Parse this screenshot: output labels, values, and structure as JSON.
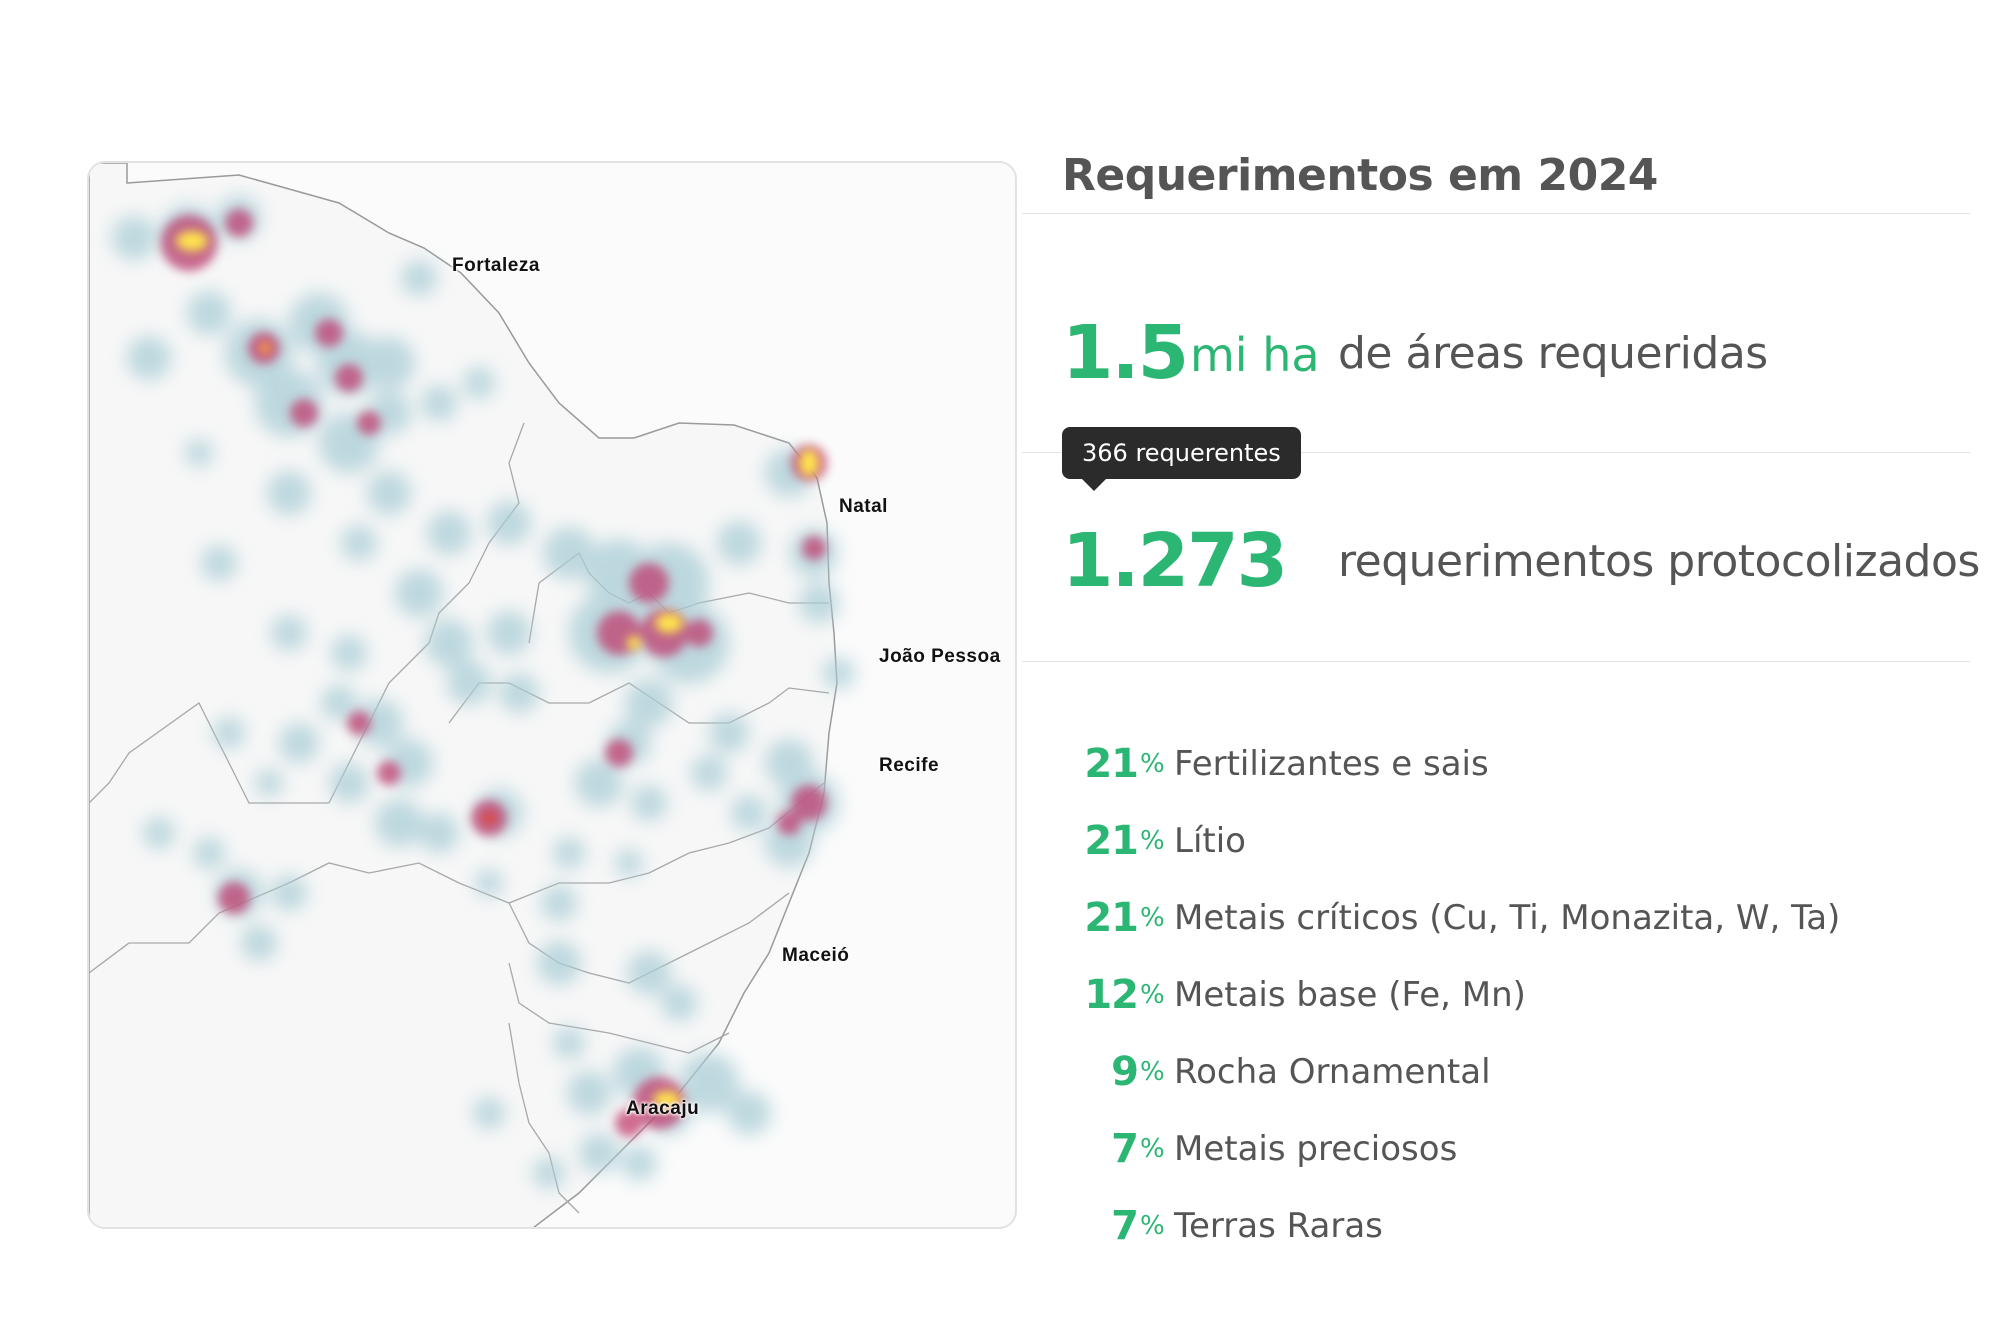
{
  "map": {
    "cities": [
      {
        "name": "Fortaleza"
      },
      {
        "name": "Natal"
      },
      {
        "name": "João Pessoa"
      },
      {
        "name": "Recife"
      },
      {
        "name": "Maceió"
      },
      {
        "name": "Aracaju"
      }
    ],
    "heat_colors": {
      "low": "#a9cdd6",
      "mid": "#c0386a",
      "high": "#ffe34d"
    }
  },
  "stats": {
    "title": "Requerimentos em 2024",
    "area": {
      "value": "1.5",
      "unit": "mi ha",
      "label": "de áreas requeridas"
    },
    "tooltip": "366 requerentes",
    "requests": {
      "value": "1.273",
      "label": "requerimentos protocolizados"
    },
    "percent_symbol": "%",
    "categories": [
      {
        "pct": "21",
        "label": "Fertilizantes e sais"
      },
      {
        "pct": "21",
        "label": "Lítio"
      },
      {
        "pct": "21",
        "label": "Metais críticos (Cu, Ti, Monazita, W, Ta)"
      },
      {
        "pct": "12",
        "label": "Metais base (Fe, Mn)"
      },
      {
        "pct": "9",
        "label": "Rocha Ornamental"
      },
      {
        "pct": "7",
        "label": "Metais preciosos"
      },
      {
        "pct": "7",
        "label": "Terras Raras"
      }
    ]
  }
}
